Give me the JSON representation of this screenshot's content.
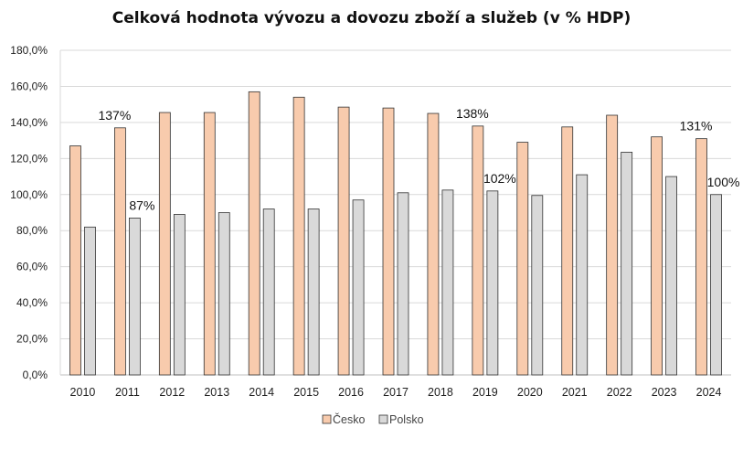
{
  "chart_data": {
    "type": "bar",
    "title": "Celková hodnota vývozu a dovozu zboží a služeb (v % HDP)",
    "categories": [
      "2010",
      "2011",
      "2012",
      "2013",
      "2014",
      "2015",
      "2016",
      "2017",
      "2018",
      "2019",
      "2020",
      "2021",
      "2022",
      "2023",
      "2024"
    ],
    "series": [
      {
        "name": "Česko",
        "color": "#F8CBAD",
        "values": [
          127,
          137,
          145.5,
          145.5,
          157,
          154,
          148.5,
          148,
          145,
          138,
          129,
          137.5,
          144,
          132,
          131
        ]
      },
      {
        "name": "Polsko",
        "color": "#D9D9D9",
        "values": [
          82,
          87,
          89,
          90,
          92,
          92,
          97,
          101,
          102.5,
          102,
          99.5,
          111,
          123.5,
          110,
          100
        ]
      }
    ],
    "ylim": [
      0,
      180
    ],
    "y_ticks": [
      "0,0%",
      "20,0%",
      "40,0%",
      "60,0%",
      "80,0%",
      "100,0%",
      "120,0%",
      "140,0%",
      "160,0%",
      "180,0%"
    ],
    "grid": true,
    "legend_position": "bottom",
    "annotations": [
      {
        "series": 0,
        "category": "2011",
        "text": "137%"
      },
      {
        "series": 1,
        "category": "2011",
        "text": "87%"
      },
      {
        "series": 0,
        "category": "2019",
        "text": "138%"
      },
      {
        "series": 1,
        "category": "2019",
        "text": "102%"
      },
      {
        "series": 0,
        "category": "2024",
        "text": "131%"
      },
      {
        "series": 1,
        "category": "2024",
        "text": "100%"
      }
    ]
  }
}
